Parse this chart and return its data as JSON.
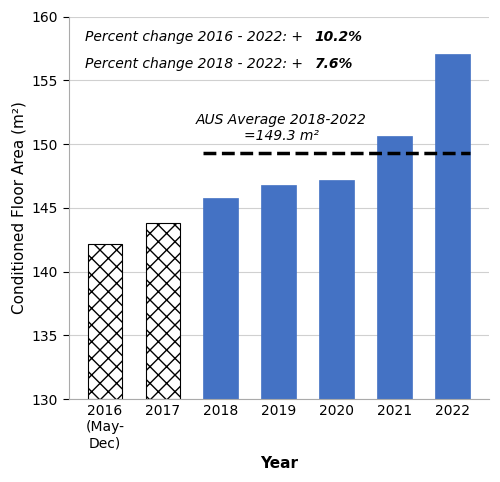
{
  "categories": [
    "2016\n(May-\nDec)",
    "2017",
    "2018",
    "2019",
    "2020",
    "2021",
    "2022"
  ],
  "values": [
    142.2,
    143.8,
    145.8,
    146.8,
    147.2,
    150.6,
    157.1
  ],
  "bar_colors": [
    "hatched",
    "hatched",
    "#4472C4",
    "#4472C4",
    "#4472C4",
    "#4472C4",
    "#4472C4"
  ],
  "solid_color": "#4472C4",
  "ylim": [
    130,
    160
  ],
  "yticks": [
    130,
    135,
    140,
    145,
    150,
    155,
    160
  ],
  "ylabel": "Conditioned Floor Area (m²)",
  "xlabel": "Year",
  "avg_line_y": 149.3,
  "avg_line_label_line1": "AUS Average 2018-2022",
  "avg_line_label_line2": "=149.3 m²",
  "background_color": "#ffffff",
  "grid_color": "#d0d0d0",
  "label_fontsize": 11,
  "tick_fontsize": 10,
  "annotation_fontsize": 10,
  "avg_label_fontsize": 10
}
